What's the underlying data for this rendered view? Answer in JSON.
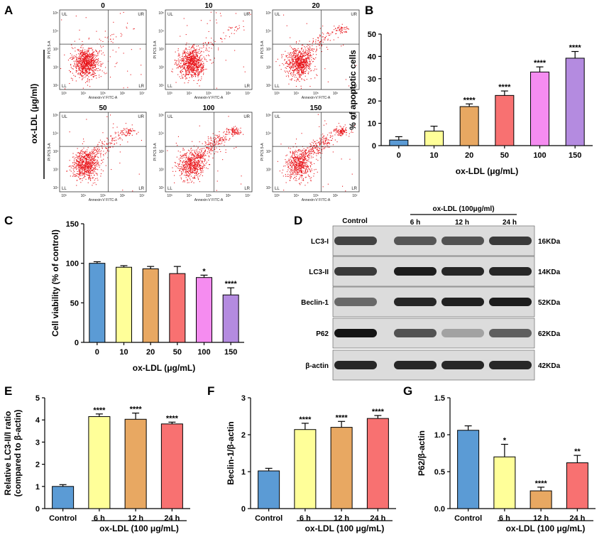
{
  "panel_labels": [
    "A",
    "B",
    "C",
    "D",
    "E",
    "F",
    "G"
  ],
  "panel_a": {
    "ylabel": "ox-LDL (μg/ml)",
    "plots": [
      "0",
      "10",
      "20",
      "50",
      "100",
      "150"
    ],
    "quadrants": [
      "UL",
      "UR",
      "LL",
      "LR"
    ],
    "x_axis_label": "Annexin-V FITC-A",
    "y_axis_label": "PI PC5.5-A",
    "x_ticks": [
      "10³",
      "10⁴",
      "10⁵",
      "10⁶",
      "10⁷"
    ],
    "y_ticks": [
      "10¹",
      "10²",
      "10³",
      "10⁴",
      "10⁵"
    ]
  },
  "panel_d": {
    "control_label": "Control",
    "treatment_label": "ox-LDL (100μg/ml)",
    "lanes": [
      "6 h",
      "12 h",
      "24 h"
    ],
    "rows": [
      {
        "name": "LC3-I",
        "size": "16KDa",
        "intensity": [
          0.7,
          0.6,
          0.62,
          0.75
        ]
      },
      {
        "name": "LC3-II",
        "size": "14KDa",
        "intensity": [
          0.75,
          0.9,
          0.85,
          0.85
        ]
      },
      {
        "name": "Beclin-1",
        "size": "52KDa",
        "intensity": [
          0.5,
          0.85,
          0.88,
          0.9
        ]
      },
      {
        "name": "P62",
        "size": "62KDa",
        "intensity": [
          0.95,
          0.62,
          0.2,
          0.55
        ]
      },
      {
        "name": "β-actin",
        "size": "42KDa",
        "intensity": [
          0.85,
          0.85,
          0.85,
          0.85
        ]
      }
    ]
  },
  "chart_data": [
    {
      "id": "B",
      "type": "bar",
      "categories": [
        "0",
        "10",
        "20",
        "50",
        "100",
        "150"
      ],
      "values": [
        2.5,
        6.5,
        17.5,
        22.5,
        33,
        39.2
      ],
      "errors": [
        1.5,
        2.2,
        1.2,
        2.0,
        2.3,
        3.0
      ],
      "significance": [
        "",
        "",
        "****",
        "****",
        "****",
        "****"
      ],
      "xlabel": "ox-LDL (μg/mL)",
      "ylabel": "% of apoptotic cells",
      "ylim": [
        0,
        50
      ],
      "yticks": [
        0,
        10,
        20,
        30,
        40,
        50
      ]
    },
    {
      "id": "C",
      "type": "bar",
      "categories": [
        "0",
        "10",
        "20",
        "50",
        "100",
        "150"
      ],
      "values": [
        100,
        95,
        93,
        87,
        82,
        60
      ],
      "errors": [
        2,
        2,
        3,
        9,
        3,
        9
      ],
      "significance": [
        "",
        "",
        "",
        "",
        "*",
        "****"
      ],
      "xlabel": "ox-LDL (μg/mL)",
      "ylabel": "Cell viability (% of control)",
      "ylim": [
        0,
        150
      ],
      "yticks": [
        0,
        50,
        100,
        150
      ]
    },
    {
      "id": "E",
      "type": "bar",
      "categories": [
        "Control",
        "6 h",
        "12 h",
        "24 h"
      ],
      "values": [
        1.0,
        4.15,
        4.03,
        3.82
      ],
      "errors": [
        0.08,
        0.12,
        0.28,
        0.08
      ],
      "significance": [
        "",
        "****",
        "****",
        "****"
      ],
      "group_label": "ox-LDL (100 μg/mL)",
      "ylabel": "Relative LC3-II/I ratio",
      "ylabel2": "(compared to β-actin)",
      "ylim": [
        0,
        5
      ],
      "yticks": [
        0,
        1,
        2,
        3,
        4,
        5
      ]
    },
    {
      "id": "F",
      "type": "bar",
      "categories": [
        "Control",
        "6 h",
        "12 h",
        "24 h"
      ],
      "values": [
        1.02,
        2.14,
        2.2,
        2.44
      ],
      "errors": [
        0.07,
        0.17,
        0.16,
        0.08
      ],
      "significance": [
        "",
        "****",
        "****",
        "****"
      ],
      "group_label": "ox-LDL (100 μg/mL)",
      "ylabel": "Beclin-1/β-actin",
      "ylim": [
        0,
        3
      ],
      "yticks": [
        0,
        1,
        2,
        3
      ]
    },
    {
      "id": "G",
      "type": "bar",
      "categories": [
        "Control",
        "6 h",
        "12 h",
        "24 h"
      ],
      "values": [
        1.06,
        0.7,
        0.24,
        0.62
      ],
      "errors": [
        0.06,
        0.17,
        0.05,
        0.1
      ],
      "significance": [
        "",
        "*",
        "****",
        "**"
      ],
      "group_label": "ox-LDL (100 μg/mL)",
      "ylabel": "P62/β-actin",
      "ylim": [
        0,
        1.5
      ],
      "yticks": [
        "0.0",
        "0.5",
        "1.0",
        "1.5"
      ]
    }
  ],
  "colors": [
    "#5b9bd5",
    "#ffff99",
    "#e8a862",
    "#f87171",
    "#f58cf0",
    "#b48be0"
  ]
}
